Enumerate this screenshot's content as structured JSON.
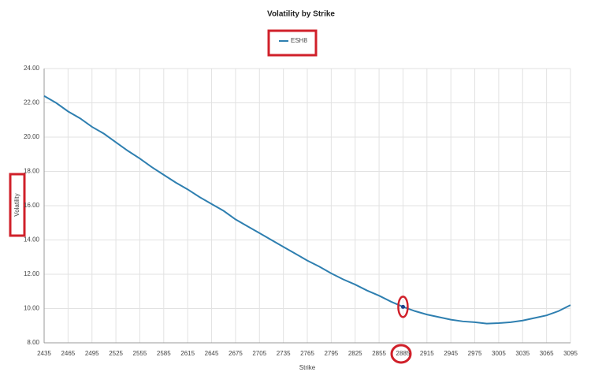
{
  "chart_data": {
    "type": "line",
    "title": "Volatility by Strike",
    "x_label": "Strike",
    "y_label": "Volatility",
    "x": [
      2435,
      2450,
      2465,
      2480,
      2495,
      2510,
      2525,
      2540,
      2555,
      2570,
      2585,
      2600,
      2615,
      2630,
      2645,
      2660,
      2675,
      2690,
      2705,
      2720,
      2735,
      2750,
      2765,
      2780,
      2795,
      2810,
      2825,
      2840,
      2855,
      2870,
      2885,
      2900,
      2915,
      2930,
      2945,
      2960,
      2975,
      2990,
      3005,
      3020,
      3035,
      3050,
      3065,
      3080,
      3095
    ],
    "series": [
      {
        "name": "ESH8",
        "color": "#2e7fb0",
        "values": [
          22.4,
          22.0,
          21.5,
          21.1,
          20.6,
          20.2,
          19.7,
          19.2,
          18.75,
          18.25,
          17.8,
          17.35,
          16.95,
          16.5,
          16.1,
          15.7,
          15.2,
          14.8,
          14.4,
          14.0,
          13.6,
          13.2,
          12.8,
          12.45,
          12.05,
          11.7,
          11.4,
          11.05,
          10.75,
          10.4,
          10.1,
          9.85,
          9.65,
          9.5,
          9.35,
          9.25,
          9.2,
          9.12,
          9.15,
          9.2,
          9.3,
          9.45,
          9.6,
          9.85,
          10.2
        ]
      }
    ],
    "xlim": [
      2435,
      3095
    ],
    "xticks": [
      2435,
      2465,
      2495,
      2525,
      2555,
      2585,
      2615,
      2645,
      2675,
      2705,
      2735,
      2765,
      2795,
      2825,
      2855,
      2885,
      2915,
      2945,
      2975,
      3005,
      3035,
      3065,
      3095
    ],
    "ylim": [
      8,
      24
    ],
    "yticks": [
      {
        "value": 8,
        "label": "8.00"
      },
      {
        "value": 10,
        "label": "10.00"
      },
      {
        "value": 12,
        "label": "12.00"
      },
      {
        "value": 14,
        "label": "14.00"
      },
      {
        "value": 16,
        "label": "16.00"
      },
      {
        "value": 18,
        "label": "18.00"
      },
      {
        "value": 20,
        "label": "20.00"
      },
      {
        "value": 22,
        "label": "22.00"
      },
      {
        "value": 24,
        "label": "24.00"
      }
    ],
    "grid": true,
    "highlight_index": 30
  }
}
